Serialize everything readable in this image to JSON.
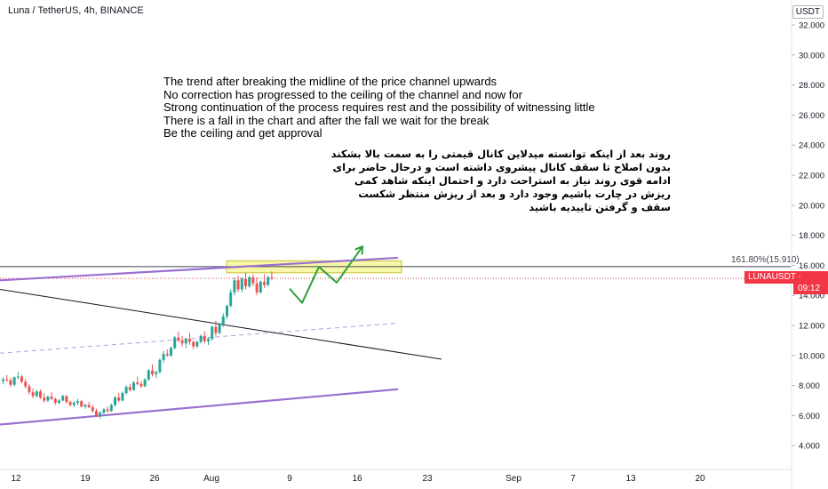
{
  "header": {
    "title": "Luna / TetherUS, 4h, BINANCE",
    "currency_button": "USDT"
  },
  "price_tag": {
    "symbol_price": "LUNAUSDT · 15.132",
    "countdown": "09:12",
    "color": "#f23645"
  },
  "fib_label": "161.80%(15.910)",
  "notes": {
    "english": [
      "The trend after breaking the midline of the price channel upwards",
      "No correction has progressed to the ceiling of the channel and now for",
      "Strong continuation of the process requires rest and the possibility of witnessing little",
      "There is a fall in the chart and after the fall we wait for the break",
      "Be the ceiling and get approval"
    ],
    "persian": [
      "روند بعد از اینکه توانسته میدلاین کانال قیمتی را به سمت بالا بشکند",
      "بدون اصلاح تا سقف کانال پیشروی داشته است و درحال حاضر برای",
      "ادامه قوی روند نیاز به استراحت دارد و احتمال اینکه شاهد کمی",
      "ریزش در چارت باشیم وجود دارد و بعد از ریزش منتظر شکست",
      "سقف و گرفتن تاییدیه باشید"
    ]
  },
  "chart_data": {
    "type": "candlestick",
    "symbol": "LUNAUSDT",
    "exchange": "BINANCE",
    "interval": "4h",
    "quote": "USDT",
    "ylim": [
      2.9,
      33.0
    ],
    "y_ticks": [
      "32.000",
      "30.000",
      "28.000",
      "26.000",
      "24.000",
      "22.000",
      "20.000",
      "18.000",
      "16.000",
      "14.000",
      "12.000",
      "10.000",
      "8.000",
      "6.000",
      "4.000"
    ],
    "x_ticks": [
      "12",
      "19",
      "26",
      "Aug",
      "9",
      "16",
      "23",
      "Sep",
      "7",
      "13",
      "20"
    ],
    "last_price": 15.132,
    "fib_level": 15.91,
    "colors": {
      "up": "#26a69a",
      "down": "#ef5350",
      "channel": "#9b6fd1",
      "midline": "#b39ddb",
      "trendline": "#131722",
      "projection": "#2e9e3c",
      "highlight": "#f4f48a"
    },
    "candles": [
      [
        8.3,
        8.55,
        8.1,
        8.4
      ],
      [
        8.4,
        8.7,
        8.25,
        8.35
      ],
      [
        8.35,
        8.5,
        7.9,
        8.05
      ],
      [
        8.05,
        8.6,
        7.95,
        8.55
      ],
      [
        8.55,
        8.9,
        8.4,
        8.6
      ],
      [
        8.6,
        8.7,
        8.15,
        8.25
      ],
      [
        8.25,
        8.45,
        7.8,
        7.95
      ],
      [
        7.95,
        8.1,
        7.4,
        7.55
      ],
      [
        7.55,
        7.8,
        7.15,
        7.3
      ],
      [
        7.3,
        7.7,
        7.2,
        7.6
      ],
      [
        7.6,
        7.75,
        7.1,
        7.2
      ],
      [
        7.2,
        7.5,
        6.85,
        7.0
      ],
      [
        7.0,
        7.35,
        6.9,
        7.25
      ],
      [
        7.25,
        7.55,
        7.05,
        7.1
      ],
      [
        7.1,
        7.2,
        6.7,
        6.85
      ],
      [
        6.85,
        7.1,
        6.75,
        7.0
      ],
      [
        7.0,
        7.4,
        6.95,
        7.3
      ],
      [
        7.3,
        7.35,
        6.8,
        6.9
      ],
      [
        6.9,
        7.0,
        6.6,
        6.7
      ],
      [
        6.7,
        6.95,
        6.55,
        6.85
      ],
      [
        6.85,
        7.1,
        6.7,
        6.95
      ],
      [
        6.95,
        7.05,
        6.55,
        6.6
      ],
      [
        6.6,
        6.8,
        6.45,
        6.7
      ],
      [
        6.7,
        6.9,
        6.5,
        6.55
      ],
      [
        6.55,
        6.7,
        6.2,
        6.3
      ],
      [
        6.3,
        6.45,
        5.9,
        6.0
      ],
      [
        6.0,
        6.3,
        5.8,
        6.2
      ],
      [
        6.2,
        6.5,
        6.1,
        6.4
      ],
      [
        6.4,
        6.6,
        6.2,
        6.3
      ],
      [
        6.3,
        6.8,
        6.25,
        6.7
      ],
      [
        6.7,
        7.3,
        6.6,
        7.2
      ],
      [
        7.2,
        7.5,
        6.9,
        7.0
      ],
      [
        7.0,
        7.6,
        6.95,
        7.5
      ],
      [
        7.5,
        8.0,
        7.4,
        7.9
      ],
      [
        7.9,
        8.1,
        7.6,
        7.7
      ],
      [
        7.7,
        8.3,
        7.65,
        8.2
      ],
      [
        8.2,
        8.6,
        8.0,
        8.1
      ],
      [
        8.1,
        8.3,
        7.85,
        7.95
      ],
      [
        7.95,
        8.5,
        7.9,
        8.4
      ],
      [
        8.4,
        9.1,
        8.3,
        9.0
      ],
      [
        9.0,
        9.4,
        8.6,
        8.75
      ],
      [
        8.75,
        9.0,
        8.5,
        8.9
      ],
      [
        8.9,
        9.8,
        8.8,
        9.7
      ],
      [
        9.7,
        10.3,
        9.5,
        10.1
      ],
      [
        10.1,
        10.4,
        9.9,
        10.0
      ],
      [
        10.0,
        10.6,
        9.9,
        10.5
      ],
      [
        10.5,
        11.3,
        10.4,
        11.2
      ],
      [
        11.2,
        11.6,
        10.9,
        11.0
      ],
      [
        11.0,
        11.3,
        10.6,
        10.8
      ],
      [
        10.8,
        11.2,
        10.5,
        11.1
      ],
      [
        11.1,
        11.5,
        10.7,
        10.9
      ],
      [
        10.9,
        11.0,
        10.4,
        10.6
      ],
      [
        10.6,
        11.0,
        10.5,
        10.9
      ],
      [
        10.9,
        11.4,
        10.8,
        11.3
      ],
      [
        11.3,
        11.6,
        10.8,
        10.95
      ],
      [
        10.95,
        11.2,
        10.7,
        11.1
      ],
      [
        11.1,
        12.0,
        11.0,
        11.9
      ],
      [
        11.9,
        12.3,
        11.3,
        11.5
      ],
      [
        11.5,
        12.2,
        11.4,
        12.1
      ],
      [
        12.1,
        12.8,
        11.9,
        12.6
      ],
      [
        12.6,
        13.4,
        12.4,
        13.3
      ],
      [
        13.3,
        14.4,
        13.2,
        14.2
      ],
      [
        14.2,
        15.2,
        14.0,
        15.0
      ],
      [
        15.0,
        15.3,
        14.2,
        14.4
      ],
      [
        14.4,
        15.2,
        14.2,
        15.1
      ],
      [
        15.1,
        15.5,
        14.4,
        14.6
      ],
      [
        14.6,
        15.3,
        14.5,
        15.2
      ],
      [
        15.2,
        15.4,
        14.6,
        14.8
      ],
      [
        14.8,
        15.2,
        14.0,
        14.2
      ],
      [
        14.2,
        15.0,
        14.1,
        14.9
      ],
      [
        14.9,
        15.4,
        14.5,
        14.7
      ],
      [
        14.7,
        15.3,
        14.6,
        15.2
      ],
      [
        15.2,
        15.6,
        15.0,
        15.132
      ]
    ],
    "channel_lower": {
      "start": [
        0,
        5.4
      ],
      "end": [
        448,
        7.75
      ]
    },
    "channel_upper": {
      "start": [
        0,
        15.0
      ],
      "end": [
        448,
        16.5
      ]
    },
    "channel_mid": {
      "start": [
        0,
        10.15
      ],
      "end": [
        448,
        12.15
      ]
    },
    "trend_line": {
      "start": [
        0,
        14.4
      ],
      "end": [
        497,
        9.75
      ]
    },
    "projection": [
      [
        326,
        14.45
      ],
      [
        340,
        13.5
      ],
      [
        359,
        15.9
      ],
      [
        379,
        14.85
      ],
      [
        408,
        17.25
      ]
    ],
    "highlight_zone": {
      "x_start": 255,
      "x_end": 452,
      "y_low": 15.5,
      "y_high": 16.3
    }
  }
}
